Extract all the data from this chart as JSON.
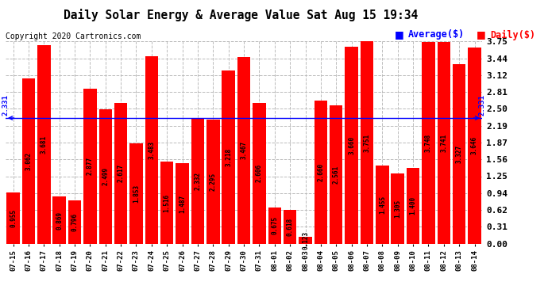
{
  "title": "Daily Solar Energy & Average Value Sat Aug 15 19:34",
  "copyright": "Copyright 2020 Cartronics.com",
  "legend_average": "Average($)",
  "legend_daily": "Daily($)",
  "average_value": 2.331,
  "categories": [
    "07-15",
    "07-16",
    "07-17",
    "07-18",
    "07-19",
    "07-20",
    "07-21",
    "07-22",
    "07-23",
    "07-24",
    "07-25",
    "07-26",
    "07-27",
    "07-28",
    "07-29",
    "07-30",
    "07-31",
    "08-01",
    "08-02",
    "08-03",
    "08-04",
    "08-05",
    "08-06",
    "08-07",
    "08-08",
    "08-09",
    "08-10",
    "08-11",
    "08-12",
    "08-13",
    "08-14"
  ],
  "values": [
    0.955,
    3.062,
    3.681,
    0.869,
    0.796,
    2.877,
    2.499,
    2.617,
    1.853,
    3.483,
    1.516,
    1.487,
    2.332,
    2.295,
    3.218,
    3.467,
    2.606,
    0.675,
    0.618,
    0.123,
    2.66,
    2.561,
    3.66,
    3.751,
    1.455,
    1.305,
    1.4,
    3.748,
    3.741,
    3.327,
    3.646
  ],
  "bar_color": "#FF0000",
  "average_line_color": "#0000FF",
  "daily_label_color": "#FF0000",
  "title_color": "#000000",
  "copyright_color": "#000000",
  "ylim": [
    0.0,
    3.75
  ],
  "yticks": [
    0.0,
    0.31,
    0.62,
    0.94,
    1.25,
    1.56,
    1.87,
    2.19,
    2.5,
    2.81,
    3.12,
    3.44,
    3.75
  ],
  "grid_color": "#BBBBBB",
  "background_color": "#FFFFFF",
  "bar_value_color": "#000000",
  "value_fontsize": 5.5,
  "xlabel_fontsize": 6.5,
  "ylabel_fontsize": 8.0,
  "title_fontsize": 10.5,
  "copyright_fontsize": 7.0,
  "legend_fontsize": 8.5
}
